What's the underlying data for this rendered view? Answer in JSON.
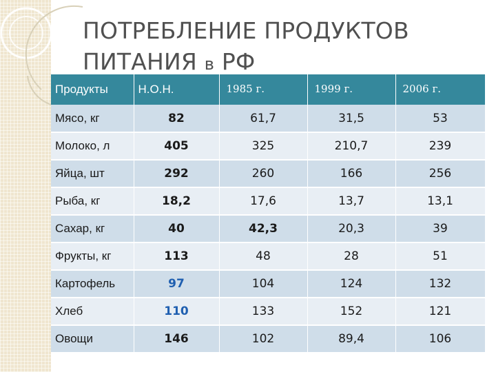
{
  "slide": {
    "title_line1": "ПОТРЕБЛЕНИЕ ПРОДУКТОВ",
    "title_line2_main": "ПИТАНИЯ ",
    "title_line2_small": "в",
    "title_line2_end": " РФ"
  },
  "table": {
    "headers": [
      "Продукты",
      "Н.О.Н.",
      "1985 г.",
      "1999 г.",
      "2006  г."
    ],
    "rows": [
      {
        "name": "Мясо, кг",
        "non": "82",
        "y1985": "61,7",
        "y1999": "31,5",
        "y2006": "53"
      },
      {
        "name": "Молоко, л",
        "non": "405",
        "y1985": "325",
        "y1999": "210,7",
        "y2006": "239"
      },
      {
        "name": "Яйца, шт",
        "non": "292",
        "y1985": "260",
        "y1999": "166",
        "y2006": "256"
      },
      {
        "name": "Рыба, кг",
        "non": "18,2",
        "y1985": "17,6",
        "y1999": "13,7",
        "y2006": "13,1"
      },
      {
        "name": "Сахар, кг",
        "non": "40",
        "y1985": "42,3",
        "y1999": "20,3",
        "y2006": "39"
      },
      {
        "name": "Фрукты, кг",
        "non": "113",
        "y1985": "48",
        "y1999": "28",
        "y2006": "51"
      },
      {
        "name": "Картофель",
        "non": "97",
        "y1985": "104",
        "y1999": "124",
        "y2006": "132"
      },
      {
        "name": "Хлеб",
        "non": "110",
        "y1985": "133",
        "y1999": "152",
        "y2006": "121"
      },
      {
        "name": "Овощи",
        "non": "146",
        "y1985": "102",
        "y1999": "89,4",
        "y2006": "106"
      }
    ]
  },
  "colors": {
    "header_bg": "#35889c",
    "row_odd": "#cfdde9",
    "row_even": "#e8eef4",
    "norm_red": "#c62828",
    "norm_blue": "#1f5fb0",
    "highlight_green": "#2a9a2a"
  }
}
